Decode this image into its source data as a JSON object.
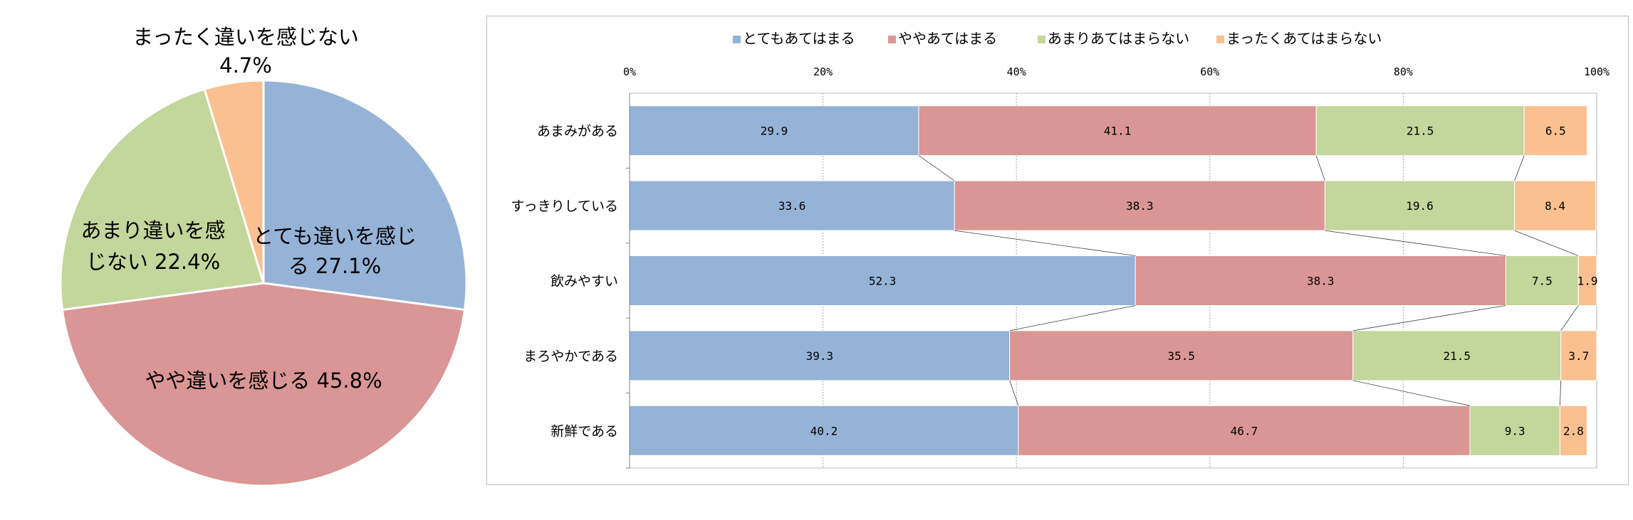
{
  "chart_data": [
    {
      "type": "pie",
      "slices": [
        {
          "label": "とても違いを感じる 27.1%",
          "value": 27.1,
          "color": "#95b3d7"
        },
        {
          "label": "やや違いを感じる 45.8%",
          "value": 45.8,
          "color": "#d99694"
        },
        {
          "label": "あまり違いを感じない 22.4%",
          "value": 22.4,
          "color": "#c3d69b"
        },
        {
          "label": "まったく違いを感じない 4.7%",
          "value": 4.7,
          "color": "#fac090"
        }
      ]
    },
    {
      "type": "bar",
      "stacked": true,
      "orientation": "horizontal",
      "percent_stacked": true,
      "categories": [
        "あまみがある",
        "すっきりしている",
        "飲みやすい",
        "まろやかである",
        "新鮮である"
      ],
      "series": [
        {
          "name": "とてもあてはまる",
          "color": "#95b3d7",
          "values": [
            29.9,
            33.6,
            52.3,
            39.3,
            40.2
          ]
        },
        {
          "name": "ややあてはまる",
          "color": "#d99694",
          "values": [
            41.1,
            38.3,
            38.3,
            35.5,
            46.7
          ]
        },
        {
          "name": "あまりあてはまらない",
          "color": "#c3d69b",
          "values": [
            21.5,
            19.6,
            7.5,
            21.5,
            9.3
          ]
        },
        {
          "name": "まったくあてはまらない",
          "color": "#fac090",
          "values": [
            6.5,
            8.4,
            1.9,
            3.7,
            2.8
          ]
        }
      ],
      "x_ticks": [
        "0%",
        "20%",
        "40%",
        "60%",
        "80%",
        "100%"
      ],
      "xlim": [
        0,
        100
      ],
      "grid": true,
      "series_lines": true,
      "legend_position": "top"
    }
  ]
}
